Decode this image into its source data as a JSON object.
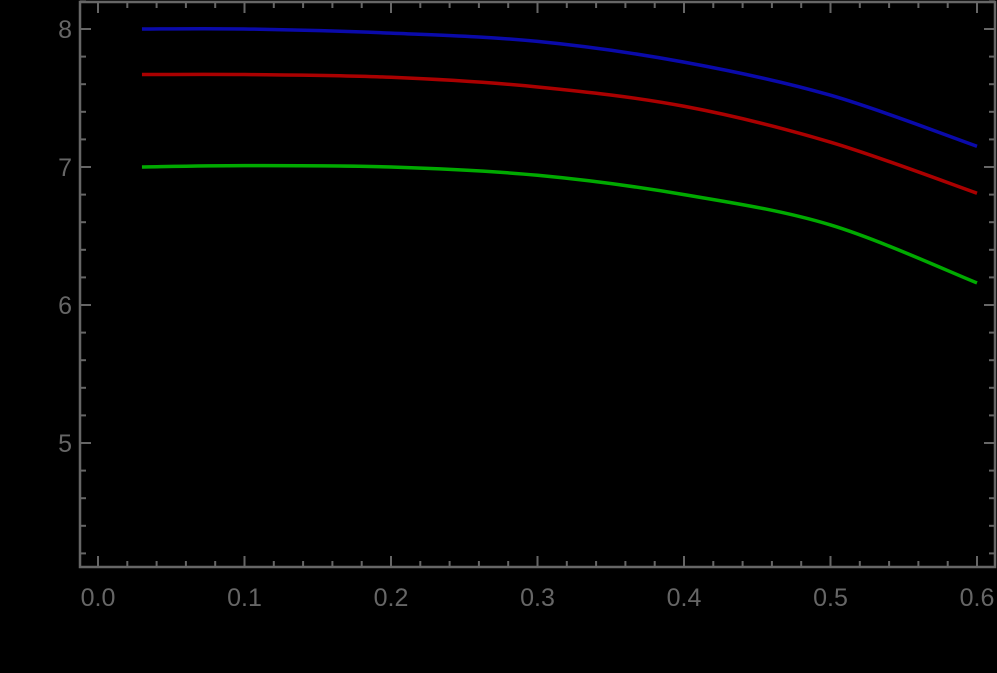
{
  "colors": {
    "background": "#000000",
    "axis": "#666666",
    "tick_label": "#666666"
  },
  "chart_data": {
    "type": "line",
    "title": "",
    "xlabel": "",
    "ylabel": "",
    "xlim": [
      0.0,
      0.6
    ],
    "ylim": [
      4.11,
      8.2
    ],
    "xticks": [
      0.0,
      0.1,
      0.2,
      0.3,
      0.4,
      0.5,
      0.6
    ],
    "xtick_labels": [
      "0.0",
      "0.1",
      "0.2",
      "0.3",
      "0.4",
      "0.5",
      "0.6"
    ],
    "x_minor_step": 0.02,
    "yticks": [
      5,
      6,
      7,
      8
    ],
    "ytick_labels": [
      "5",
      "6",
      "7",
      "8"
    ],
    "y_minor_step": 0.2,
    "grid": false,
    "frame": true,
    "legend": null,
    "x": [
      0.03,
      0.1,
      0.2,
      0.3,
      0.4,
      0.5,
      0.6
    ],
    "series": [
      {
        "name": "blue curve",
        "color": "#0a0aaa",
        "values": [
          8.0,
          8.0,
          7.97,
          7.91,
          7.76,
          7.52,
          7.15
        ]
      },
      {
        "name": "red curve",
        "color": "#aa0000",
        "values": [
          7.67,
          7.67,
          7.65,
          7.58,
          7.44,
          7.18,
          6.81
        ]
      },
      {
        "name": "green curve",
        "color": "#00aa00",
        "values": [
          7.0,
          7.01,
          7.0,
          6.94,
          6.8,
          6.58,
          6.16
        ]
      }
    ]
  }
}
